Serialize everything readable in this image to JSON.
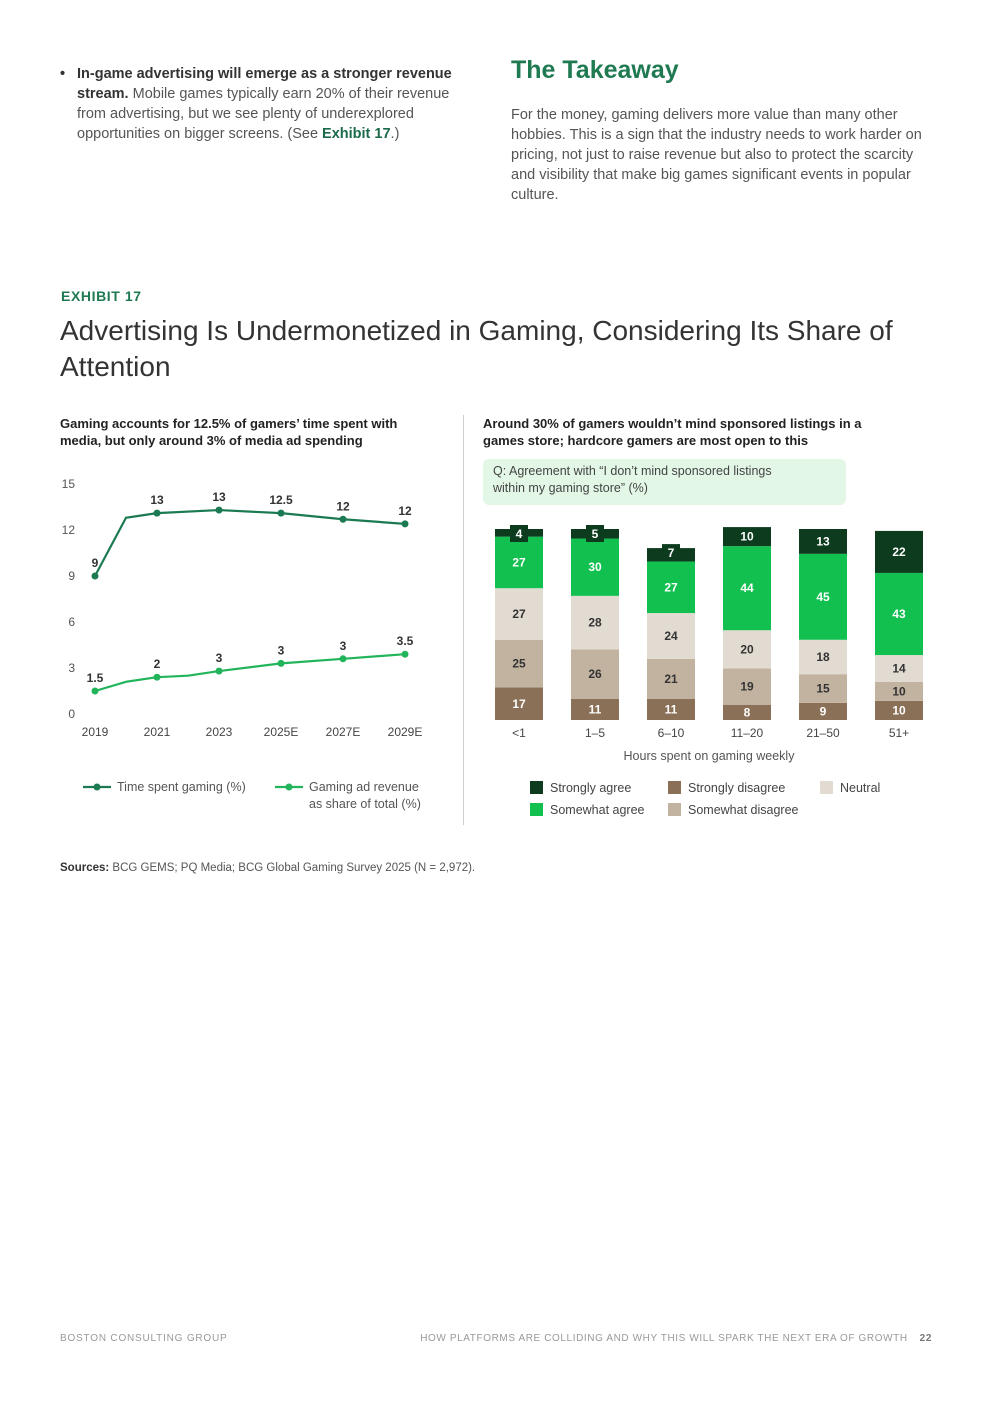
{
  "intro": {
    "bullet_bold": "In-game advertising will emerge as a stronger revenue stream.",
    "bullet_text": " Mobile games typically earn 20% of their revenue from advertising, but we see plenty of underexplored opportunities on bigger screens. (See ",
    "bullet_link": "Exhibit 17",
    "bullet_end": ".)"
  },
  "takeaway": {
    "title": "The Takeaway",
    "body": "For the money, gaming delivers more value than many other hobbies. This is a sign that the industry needs to work harder on pricing, not just to raise revenue but also to protect the scarcity and visibility that make big games significant events in popular culture."
  },
  "exhibit": {
    "label": "EXHIBIT 17",
    "title": "Advertising Is Undermonetized in Gaming, Considering Its Share of Attention"
  },
  "colors": {
    "time_line": "#1b7a52",
    "ad_line": "#22b45a",
    "strongly_agree": "#0d3b1e",
    "somewhat_agree": "#12c050",
    "neutral": "#e2dbd1",
    "somewhat_disagree": "#c2b3a1",
    "strongly_disagree": "#8a7057"
  },
  "chart_data": [
    {
      "type": "line",
      "title": "Gaming accounts for 12.5% of gamers’ time spent with media, but only around 3% of media ad spending",
      "x": [
        "2019",
        "2021",
        "2023",
        "2025E",
        "2027E",
        "2029E"
      ],
      "ylim": [
        0,
        15
      ],
      "yticks": [
        "0",
        "3",
        "6",
        "9",
        "12",
        "15"
      ],
      "series": [
        {
          "name": "Time spent gaming (%)",
          "values": [
            9,
            13,
            13,
            12.5,
            12,
            12
          ],
          "labels": [
            "9",
            "13",
            "13",
            "12.5",
            "12",
            "12"
          ],
          "path_x": [
            0,
            0.5,
            1,
            2,
            3,
            4,
            5
          ],
          "path_y": [
            9,
            12.8,
            13.1,
            13.3,
            13.1,
            12.7,
            12.4
          ]
        },
        {
          "name": "Gaming ad revenue as share of total (%)",
          "values": [
            1.5,
            2,
            3,
            3,
            3,
            3.5
          ],
          "labels": [
            "1.5",
            "2",
            "3",
            "3",
            "3",
            "3.5"
          ],
          "path_x": [
            0,
            0.5,
            1,
            1.5,
            2,
            3,
            4,
            5
          ],
          "path_y": [
            1.5,
            2.1,
            2.4,
            2.5,
            2.8,
            3.3,
            3.6,
            3.9
          ]
        }
      ],
      "legend": [
        "Time spent gaming (%)",
        "Gaming ad revenue",
        "as share of total (%)"
      ]
    },
    {
      "type": "bar",
      "stacked": true,
      "title": "Around 30% of gamers wouldn’t mind sponsored listings in a games store; hardcore gamers are most open to this",
      "question_line1": "Q: Agreement with “I don’t mind sponsored listings",
      "question_line2": "within my gaming store” (%)",
      "categories": [
        "<1",
        "1–5",
        "6–10",
        "11–20",
        "21–50",
        "51+"
      ],
      "xlabel": "Hours spent on gaming weekly",
      "series": [
        {
          "name": "Strongly disagree",
          "key": "strongly_disagree",
          "values": [
            17,
            11,
            11,
            8,
            9,
            10
          ]
        },
        {
          "name": "Somewhat disagree",
          "key": "somewhat_disagree",
          "values": [
            25,
            26,
            21,
            19,
            15,
            10
          ]
        },
        {
          "name": "Neutral",
          "key": "neutral",
          "values": [
            27,
            28,
            24,
            20,
            18,
            14
          ]
        },
        {
          "name": "Somewhat agree",
          "key": "somewhat_agree",
          "values": [
            27,
            30,
            27,
            44,
            45,
            43
          ]
        },
        {
          "name": "Strongly agree",
          "key": "strongly_agree",
          "values": [
            4,
            5,
            7,
            10,
            13,
            22
          ]
        }
      ],
      "legend_order": [
        "Strongly agree",
        "Strongly disagree",
        "Neutral",
        "Somewhat agree",
        "Somewhat disagree"
      ],
      "ylim": [
        0,
        100
      ]
    }
  ],
  "sources": {
    "label": "Sources:",
    "text": " BCG GEMS; PQ Media; BCG Global Gaming Survey 2025 (N = 2,972)."
  },
  "footer": {
    "left": "BOSTON CONSULTING GROUP",
    "right": "HOW PLATFORMS ARE COLLIDING AND WHY THIS WILL SPARK THE NEXT ERA OF GROWTH",
    "page": "22"
  }
}
